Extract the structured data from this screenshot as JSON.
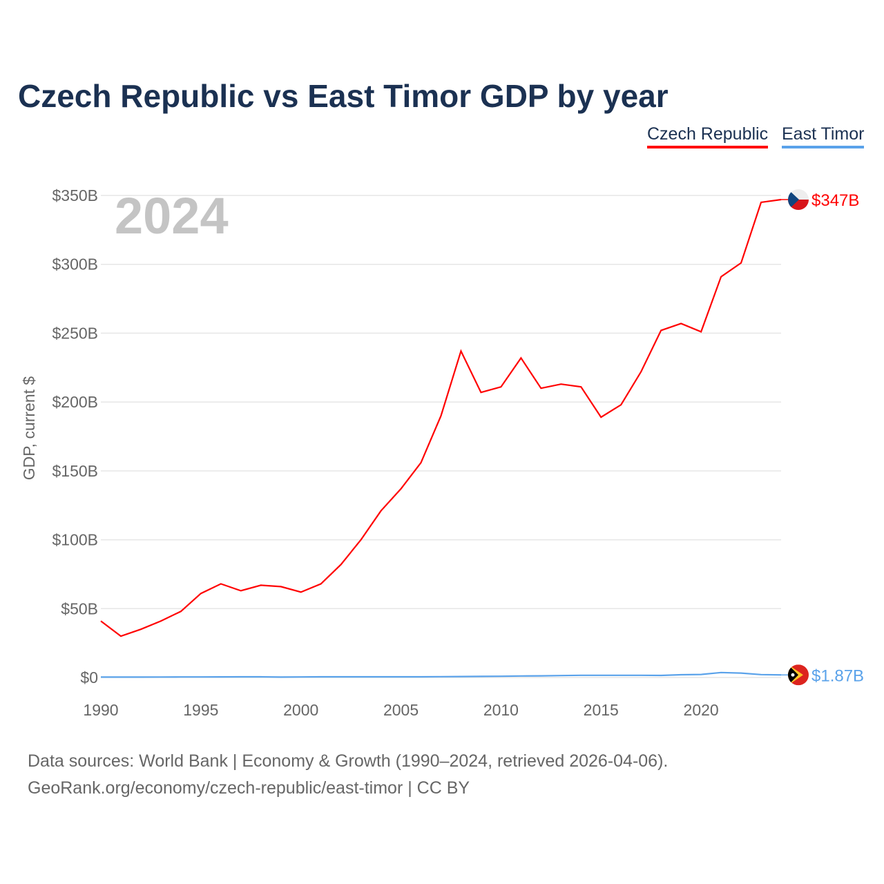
{
  "title": "Czech Republic vs East Timor GDP by year",
  "year_watermark": "2024",
  "footer": {
    "line1": "Data sources: World Bank | Economy & Growth (1990–2024, retrieved 2026-04-06).",
    "line2": "GeoRank.org/economy/czech-republic/east-timor | CC BY"
  },
  "chart_data": {
    "type": "line",
    "title": "Czech Republic vs East Timor GDP by year",
    "xlabel": "",
    "ylabel": "GDP, current $",
    "xlim": [
      1990,
      2024
    ],
    "ylim": [
      0,
      350
    ],
    "x_ticks": [
      "1990",
      "1995",
      "2000",
      "2005",
      "2010",
      "2015",
      "2020"
    ],
    "x_tick_values": [
      1990,
      1995,
      2000,
      2005,
      2010,
      2015,
      2020
    ],
    "y_ticks": [
      "$0",
      "$50B",
      "$100B",
      "$150B",
      "$200B",
      "$250B",
      "$300B",
      "$350B"
    ],
    "y_tick_values": [
      0,
      50,
      100,
      150,
      200,
      250,
      300,
      350
    ],
    "grid": true,
    "legend_position": "top-right",
    "x": [
      1990,
      1991,
      1992,
      1993,
      1994,
      1995,
      1996,
      1997,
      1998,
      1999,
      2000,
      2001,
      2002,
      2003,
      2004,
      2005,
      2006,
      2007,
      2008,
      2009,
      2010,
      2011,
      2012,
      2013,
      2014,
      2015,
      2016,
      2017,
      2018,
      2019,
      2020,
      2021,
      2022,
      2023,
      2024
    ],
    "series": [
      {
        "name": "Czech Republic",
        "color": "#ff0000",
        "end_label": "$347B",
        "values": [
          41,
          30,
          35,
          41,
          48,
          61,
          68,
          63,
          67,
          66,
          62,
          68,
          82,
          100,
          121,
          137,
          156,
          190,
          237,
          207,
          211,
          232,
          210,
          213,
          211,
          189,
          198,
          222,
          252,
          257,
          251,
          291,
          301,
          345,
          347
        ]
      },
      {
        "name": "East Timor",
        "color": "#5aa2ea",
        "end_label": "$1.87B",
        "values": [
          0.3,
          0.3,
          0.3,
          0.35,
          0.4,
          0.4,
          0.45,
          0.5,
          0.5,
          0.3,
          0.4,
          0.5,
          0.5,
          0.5,
          0.5,
          0.5,
          0.5,
          0.6,
          0.7,
          0.8,
          0.9,
          1.1,
          1.2,
          1.4,
          1.6,
          1.6,
          1.6,
          1.6,
          1.5,
          2.0,
          2.2,
          3.6,
          3.2,
          2.1,
          1.87
        ]
      }
    ]
  }
}
